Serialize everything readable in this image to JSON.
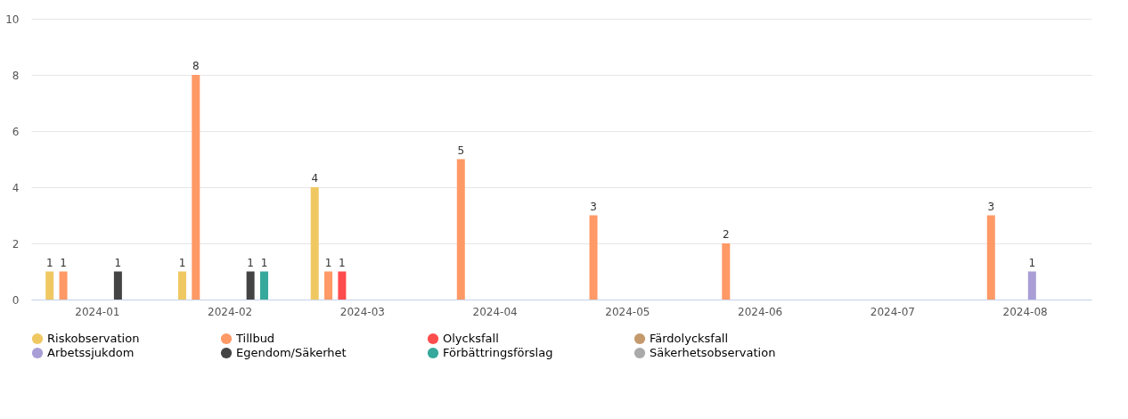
{
  "chart_data": {
    "type": "bar",
    "categories": [
      "2024-01",
      "2024-02",
      "2024-03",
      "2024-04",
      "2024-05",
      "2024-06",
      "2024-07",
      "2024-08"
    ],
    "ylim": [
      0,
      10
    ],
    "yticks": [
      0,
      2,
      4,
      6,
      8,
      10
    ],
    "grid": "y",
    "legend": "bottom",
    "data_labels": true,
    "series": [
      {
        "name": "Riskobservation",
        "color": "#f0c862",
        "values": [
          1,
          1,
          4,
          null,
          null,
          null,
          null,
          null
        ]
      },
      {
        "name": "Tillbud",
        "color": "#ff9966",
        "values": [
          1,
          8,
          1,
          5,
          3,
          2,
          null,
          3
        ]
      },
      {
        "name": "Olycksfall",
        "color": "#ff4d4d",
        "values": [
          null,
          null,
          1,
          null,
          null,
          null,
          null,
          null
        ]
      },
      {
        "name": "Färdolycksfall",
        "color": "#c49a6c",
        "values": [
          null,
          null,
          null,
          null,
          null,
          null,
          null,
          null
        ]
      },
      {
        "name": "Arbetssjukdom",
        "color": "#a99ed6",
        "values": [
          null,
          null,
          null,
          null,
          null,
          null,
          null,
          1
        ]
      },
      {
        "name": "Egendom/Säkerhet",
        "color": "#444444",
        "values": [
          1,
          1,
          null,
          null,
          null,
          null,
          null,
          null
        ]
      },
      {
        "name": "Förbättringsförslag",
        "color": "#36a89c",
        "values": [
          null,
          1,
          null,
          null,
          null,
          null,
          null,
          null
        ]
      },
      {
        "name": "Säkerhetsobservation",
        "color": "#aaaaaa",
        "values": [
          null,
          null,
          null,
          null,
          null,
          null,
          null,
          null
        ]
      }
    ]
  }
}
